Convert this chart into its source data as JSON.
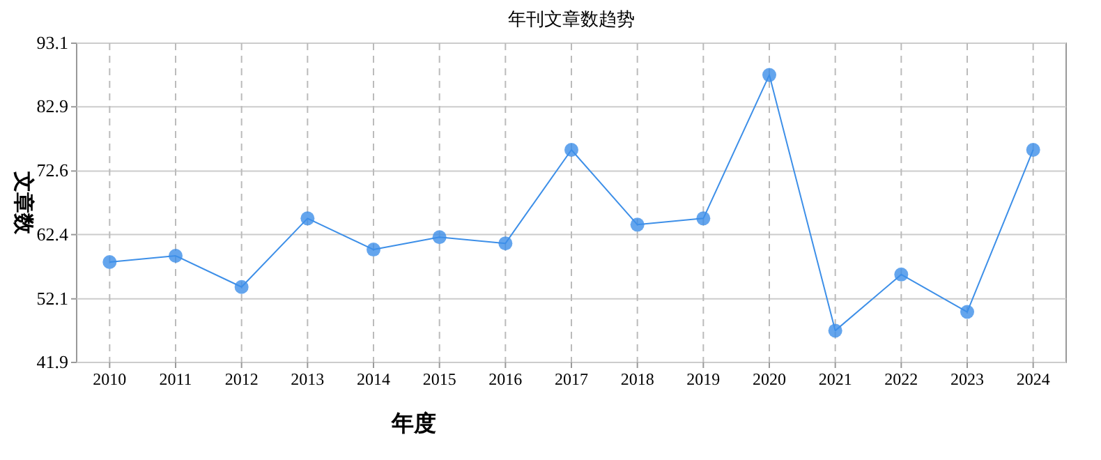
{
  "chart_data": {
    "type": "line",
    "title": "年刊文章数趋势",
    "xlabel": "年度",
    "ylabel": "文章数",
    "categories": [
      "2010",
      "2011",
      "2012",
      "2013",
      "2014",
      "2015",
      "2016",
      "2017",
      "2018",
      "2019",
      "2020",
      "2021",
      "2022",
      "2023",
      "2024"
    ],
    "series": [
      {
        "color": "#3d8fe8",
        "values": [
          58,
          59,
          54,
          65,
          60,
          62,
          61,
          76,
          64,
          65,
          88,
          47,
          56,
          50,
          76
        ]
      }
    ],
    "ylim": [
      41.9,
      93.1
    ],
    "yticks": [
      41.9,
      52.1,
      62.4,
      72.6,
      82.9,
      93.1
    ],
    "grid": true,
    "marker": "circle",
    "line_style": "solid"
  }
}
